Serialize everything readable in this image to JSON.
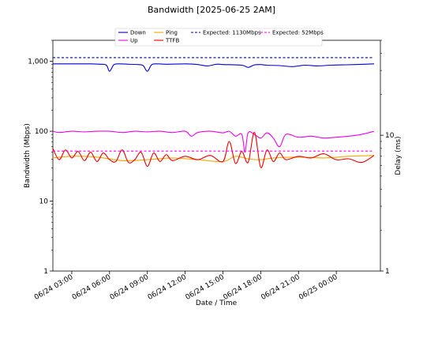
{
  "chart_data": {
    "type": "line",
    "title": "Bandwidth [2025-06-25 2AM]",
    "xlabel": "Date / Time",
    "ylabel": "Bandwidth (Mbps)",
    "y2label": "Delay (ms)",
    "xlim": [
      "2025-06-24 01:30",
      "2025-06-25 03:30"
    ],
    "ylim": [
      1,
      2000
    ],
    "y2lim": [
      1,
      50
    ],
    "yscale": "log",
    "y2scale": "log",
    "grid": false,
    "legend_placement": "top-center",
    "x_ticks": [
      "06/24 03:00",
      "06/24 06:00",
      "06/24 09:00",
      "06/24 12:00",
      "06/24 15:00",
      "06/24 18:00",
      "06/24 21:00",
      "06/25 00:00"
    ],
    "x_tick_times": [
      "2025-06-24 03:00",
      "2025-06-24 06:00",
      "2025-06-24 09:00",
      "2025-06-24 12:00",
      "2025-06-24 15:00",
      "2025-06-24 18:00",
      "2025-06-24 21:00",
      "2025-06-25 00:00"
    ],
    "y_ticks": [
      {
        "value": 1,
        "label": "1"
      },
      {
        "value": 10,
        "label": "10"
      },
      {
        "value": 100,
        "label": "100"
      },
      {
        "value": 1000,
        "label": "1,000"
      }
    ],
    "y2_ticks": [
      {
        "value": 1,
        "label": "1"
      },
      {
        "value": 10,
        "label": "10"
      }
    ],
    "colors": {
      "down": "#0000cc",
      "up": "#ee00ee",
      "ping": "#ffa500",
      "ttfb": "#ee0000",
      "expected_down": "#00008b",
      "expected_up": "#ff00ff"
    },
    "series": [
      {
        "name": "Down",
        "axis": "left",
        "style": "solid",
        "color_key": "down",
        "x": [
          "2025-06-24 01:30",
          "2025-06-24 03:00",
          "2025-06-24 04:30",
          "2025-06-24 05:15",
          "2025-06-24 05:45",
          "2025-06-24 06:00",
          "2025-06-24 06:20",
          "2025-06-24 06:45",
          "2025-06-24 07:30",
          "2025-06-24 08:15",
          "2025-06-24 08:40",
          "2025-06-24 09:00",
          "2025-06-24 09:20",
          "2025-06-24 09:45",
          "2025-06-24 10:30",
          "2025-06-24 12:00",
          "2025-06-24 13:00",
          "2025-06-24 13:45",
          "2025-06-24 14:30",
          "2025-06-24 15:00",
          "2025-06-24 16:30",
          "2025-06-24 17:00",
          "2025-06-24 17:30",
          "2025-06-24 18:00",
          "2025-06-24 18:30",
          "2025-06-24 19:30",
          "2025-06-24 20:30",
          "2025-06-24 21:30",
          "2025-06-24 22:30",
          "2025-06-24 23:30",
          "2025-06-25 00:30",
          "2025-06-25 01:30",
          "2025-06-25 03:00"
        ],
        "y": [
          920,
          920,
          920,
          910,
          880,
          720,
          890,
          920,
          910,
          900,
          870,
          720,
          890,
          920,
          910,
          920,
          900,
          860,
          910,
          900,
          880,
          820,
          890,
          900,
          880,
          870,
          840,
          880,
          860,
          880,
          890,
          900,
          920
        ]
      },
      {
        "name": "Up",
        "axis": "left",
        "style": "solid",
        "color_key": "up",
        "x": [
          "2025-06-24 01:30",
          "2025-06-24 02:00",
          "2025-06-24 03:00",
          "2025-06-24 04:00",
          "2025-06-24 05:00",
          "2025-06-24 06:00",
          "2025-06-24 07:00",
          "2025-06-24 08:00",
          "2025-06-24 09:00",
          "2025-06-24 10:00",
          "2025-06-24 11:00",
          "2025-06-24 12:00",
          "2025-06-24 12:30",
          "2025-06-24 13:00",
          "2025-06-24 14:00",
          "2025-06-24 15:00",
          "2025-06-24 15:30",
          "2025-06-24 16:00",
          "2025-06-24 16:30",
          "2025-06-24 16:45",
          "2025-06-24 17:00",
          "2025-06-24 17:30",
          "2025-06-24 18:00",
          "2025-06-24 18:30",
          "2025-06-24 19:00",
          "2025-06-24 19:30",
          "2025-06-24 20:00",
          "2025-06-24 21:00",
          "2025-06-24 22:00",
          "2025-06-24 23:00",
          "2025-06-25 00:00",
          "2025-06-25 01:00",
          "2025-06-25 02:00",
          "2025-06-25 03:00"
        ],
        "y": [
          100,
          96,
          100,
          98,
          100,
          100,
          96,
          100,
          98,
          100,
          96,
          100,
          85,
          96,
          100,
          95,
          100,
          85,
          90,
          50,
          95,
          90,
          80,
          95,
          80,
          60,
          90,
          82,
          85,
          80,
          82,
          85,
          90,
          100
        ]
      },
      {
        "name": "Ping",
        "axis": "right",
        "style": "solid",
        "color_key": "ping",
        "x": [
          "2025-06-24 01:30",
          "2025-06-24 03:00",
          "2025-06-24 05:00",
          "2025-06-24 07:00",
          "2025-06-24 09:00",
          "2025-06-24 11:00",
          "2025-06-24 13:00",
          "2025-06-24 15:00",
          "2025-06-24 16:00",
          "2025-06-24 17:00",
          "2025-06-24 18:00",
          "2025-06-24 19:00",
          "2025-06-24 21:00",
          "2025-06-24 23:00",
          "2025-06-25 01:00",
          "2025-06-25 03:00"
        ],
        "y": [
          6.8,
          7.0,
          6.9,
          6.5,
          6.6,
          6.8,
          6.6,
          6.4,
          7.0,
          6.7,
          6.6,
          6.8,
          6.9,
          6.8,
          7.0,
          7.1
        ]
      },
      {
        "name": "TTFB",
        "axis": "right",
        "style": "solid",
        "color_key": "ttfb",
        "x": [
          "2025-06-24 01:30",
          "2025-06-24 02:00",
          "2025-06-24 02:30",
          "2025-06-24 03:00",
          "2025-06-24 03:30",
          "2025-06-24 04:00",
          "2025-06-24 04:30",
          "2025-06-24 05:00",
          "2025-06-24 05:30",
          "2025-06-24 06:00",
          "2025-06-24 06:30",
          "2025-06-24 07:00",
          "2025-06-24 07:30",
          "2025-06-24 08:00",
          "2025-06-24 08:30",
          "2025-06-24 09:00",
          "2025-06-24 09:30",
          "2025-06-24 10:00",
          "2025-06-24 10:30",
          "2025-06-24 11:00",
          "2025-06-24 12:00",
          "2025-06-24 13:00",
          "2025-06-24 14:00",
          "2025-06-24 15:00",
          "2025-06-24 15:30",
          "2025-06-24 16:00",
          "2025-06-24 16:30",
          "2025-06-24 17:00",
          "2025-06-24 17:30",
          "2025-06-24 18:00",
          "2025-06-24 18:30",
          "2025-06-24 19:00",
          "2025-06-24 19:30",
          "2025-06-24 20:00",
          "2025-06-24 21:00",
          "2025-06-24 22:00",
          "2025-06-24 23:00",
          "2025-06-25 00:00",
          "2025-06-25 01:00",
          "2025-06-25 02:00",
          "2025-06-25 03:00"
        ],
        "y": [
          8.0,
          6.6,
          7.8,
          6.8,
          7.6,
          6.5,
          7.5,
          6.4,
          7.4,
          6.6,
          6.4,
          7.8,
          6.3,
          6.6,
          7.5,
          5.9,
          7.4,
          6.4,
          7.2,
          6.5,
          7.0,
          6.6,
          7.1,
          6.4,
          9.0,
          6.2,
          7.6,
          6.3,
          10.5,
          5.8,
          7.8,
          6.4,
          7.4,
          6.6,
          7.0,
          6.8,
          7.3,
          6.6,
          6.7,
          6.3,
          7.1
        ]
      },
      {
        "name": "Expected: 1130Mbps",
        "axis": "left",
        "style": "dashed",
        "color_key": "expected_down",
        "x": [
          "2025-06-24 01:30",
          "2025-06-25 03:00"
        ],
        "y": [
          1130,
          1130
        ]
      },
      {
        "name": "Expected: 52Mbps",
        "axis": "left",
        "style": "dashed",
        "color_key": "expected_up",
        "x": [
          "2025-06-24 01:30",
          "2025-06-25 03:00"
        ],
        "y": [
          52,
          52
        ]
      }
    ]
  }
}
